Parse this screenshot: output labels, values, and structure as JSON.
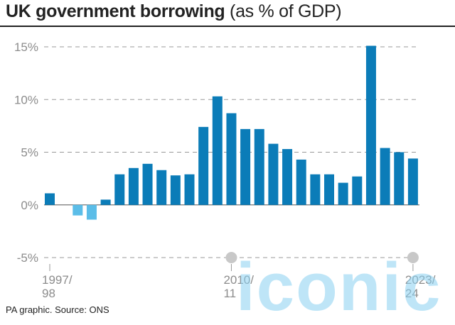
{
  "header": {
    "title_main": "UK government borrowing",
    "title_sub": "(as % of GDP)"
  },
  "footer": {
    "source": "PA graphic. Source: ONS"
  },
  "watermark": {
    "text": "iconic"
  },
  "chart_data": {
    "type": "bar",
    "title": "UK government borrowing (as % of GDP)",
    "xlabel": "",
    "ylabel": "",
    "ylim": [
      -5,
      15
    ],
    "yticks": [
      15,
      10,
      5,
      0,
      -5
    ],
    "ytick_labels": [
      "15%",
      "10%",
      "5%",
      "0%",
      "-5%"
    ],
    "grid": "horizontal dashed",
    "colors": {
      "positive": "#0b7cb8",
      "negative": "#5bbde8"
    },
    "values": [
      1.1,
      0,
      -1.0,
      -1.4,
      0.5,
      2.9,
      3.5,
      3.9,
      3.3,
      2.8,
      2.9,
      7.4,
      10.3,
      8.7,
      7.2,
      7.2,
      5.8,
      5.3,
      4.3,
      2.9,
      2.9,
      2.1,
      2.7,
      15.1,
      5.4,
      5.0,
      4.4
    ],
    "x_labels": [
      {
        "index": 0,
        "lines": [
          "1997/",
          "98"
        ]
      },
      {
        "index": 13,
        "lines": [
          "2010/",
          "11"
        ]
      },
      {
        "index": 26,
        "lines": [
          "2023/",
          "24"
        ]
      }
    ]
  }
}
